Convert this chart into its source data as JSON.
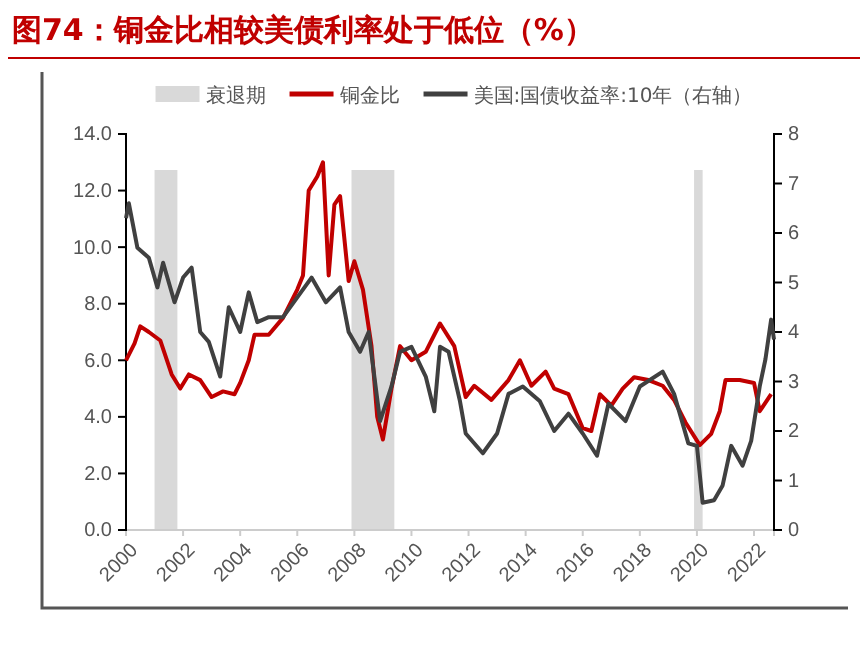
{
  "chart_data": {
    "type": "line",
    "title": "图74：铜金比相较美债利率处于低位（%）",
    "legend": "top",
    "xlim": [
      2000,
      2022.7
    ],
    "xticks": [
      2000,
      2002,
      2004,
      2006,
      2008,
      2010,
      2012,
      2014,
      2016,
      2018,
      2020,
      2022
    ],
    "ylim": [
      0,
      14
    ],
    "yticks": [
      {
        "value": 0,
        "label": "0.0"
      },
      {
        "value": 2,
        "label": "2.0"
      },
      {
        "value": 4,
        "label": "4.0"
      },
      {
        "value": 6,
        "label": "6.0"
      },
      {
        "value": 8,
        "label": "8.0"
      },
      {
        "value": 10,
        "label": "10.0"
      },
      {
        "value": 12,
        "label": "12.0"
      },
      {
        "value": 14,
        "label": "14.0"
      }
    ],
    "y2lim": [
      0,
      8
    ],
    "y2ticks": [
      0,
      1,
      2,
      3,
      4,
      5,
      6,
      7,
      8
    ],
    "bands": [
      {
        "axis": "x",
        "from": 2001.0,
        "to": 2001.8,
        "label": "衰退期",
        "color": "#d9d9d9"
      },
      {
        "axis": "x",
        "from": 2007.9,
        "to": 2009.4,
        "color": "#d9d9d9"
      },
      {
        "axis": "x",
        "from": 2019.9,
        "to": 2020.2,
        "color": "#d9d9d9"
      }
    ],
    "series": [
      {
        "name": "铜金比",
        "color": "#c00000",
        "x": [
          2000.0,
          2000.3,
          2000.5,
          2000.8,
          2001.2,
          2001.6,
          2001.9,
          2002.2,
          2002.6,
          2003.0,
          2003.4,
          2003.8,
          2004.0,
          2004.3,
          2004.5,
          2005.0,
          2005.5,
          2006.0,
          2006.2,
          2006.4,
          2006.7,
          2006.9,
          2007.1,
          2007.3,
          2007.5,
          2007.8,
          2008.0,
          2008.3,
          2008.6,
          2008.8,
          2009.0,
          2009.3,
          2009.6,
          2010.0,
          2010.5,
          2011.0,
          2011.5,
          2011.9,
          2012.2,
          2012.8,
          2013.4,
          2013.8,
          2014.2,
          2014.7,
          2015.0,
          2015.5,
          2016.0,
          2016.3,
          2016.6,
          2017.0,
          2017.4,
          2017.8,
          2018.3,
          2018.8,
          2019.2,
          2019.6,
          2020.1,
          2020.5,
          2020.8,
          2021.0,
          2021.5,
          2022.0,
          2022.2,
          2022.6
        ],
        "values": [
          6.0,
          6.6,
          7.2,
          7.0,
          6.7,
          5.5,
          5.0,
          5.5,
          5.3,
          4.7,
          4.9,
          4.8,
          5.2,
          6.0,
          6.9,
          6.9,
          7.5,
          8.5,
          9.0,
          12.0,
          12.5,
          13.0,
          9.0,
          11.5,
          11.8,
          8.8,
          9.5,
          8.5,
          6.5,
          4.0,
          3.2,
          5.0,
          6.5,
          6.0,
          6.3,
          7.3,
          6.5,
          4.7,
          5.1,
          4.6,
          5.3,
          6.0,
          5.1,
          5.6,
          5.0,
          4.8,
          3.6,
          3.5,
          4.8,
          4.4,
          5.0,
          5.4,
          5.3,
          5.1,
          4.6,
          3.8,
          3.0,
          3.4,
          4.2,
          5.3,
          5.3,
          5.2,
          4.2,
          4.8
        ]
      },
      {
        "name": "美国:国债收益率:10年（右轴）",
        "color": "#404040",
        "axis": "y2",
        "x": [
          2000.0,
          2000.1,
          2000.4,
          2000.8,
          2001.1,
          2001.3,
          2001.7,
          2002.0,
          2002.3,
          2002.6,
          2002.9,
          2003.3,
          2003.6,
          2004.0,
          2004.3,
          2004.6,
          2005.0,
          2005.5,
          2006.0,
          2006.5,
          2007.0,
          2007.5,
          2007.8,
          2008.2,
          2008.5,
          2008.9,
          2009.3,
          2009.6,
          2010.0,
          2010.5,
          2010.8,
          2011.0,
          2011.3,
          2011.7,
          2011.9,
          2012.5,
          2013.0,
          2013.4,
          2013.9,
          2014.5,
          2015.0,
          2015.5,
          2016.0,
          2016.5,
          2016.9,
          2017.5,
          2018.0,
          2018.8,
          2019.2,
          2019.7,
          2020.0,
          2020.2,
          2020.6,
          2020.9,
          2021.2,
          2021.6,
          2021.9,
          2022.2,
          2022.4,
          2022.6,
          2022.7
        ],
        "values": [
          6.3,
          6.6,
          5.7,
          5.5,
          4.9,
          5.4,
          4.6,
          5.1,
          5.3,
          4.0,
          3.8,
          3.1,
          4.5,
          4.0,
          4.8,
          4.2,
          4.3,
          4.3,
          4.7,
          5.1,
          4.6,
          4.9,
          4.0,
          3.6,
          4.0,
          2.2,
          2.9,
          3.6,
          3.7,
          3.1,
          2.4,
          3.7,
          3.6,
          2.6,
          1.95,
          1.55,
          1.95,
          2.75,
          2.9,
          2.6,
          2.0,
          2.35,
          1.95,
          1.5,
          2.55,
          2.2,
          2.9,
          3.2,
          2.75,
          1.75,
          1.7,
          0.55,
          0.6,
          0.9,
          1.7,
          1.3,
          1.8,
          2.9,
          3.45,
          4.25,
          3.85
        ]
      }
    ]
  }
}
